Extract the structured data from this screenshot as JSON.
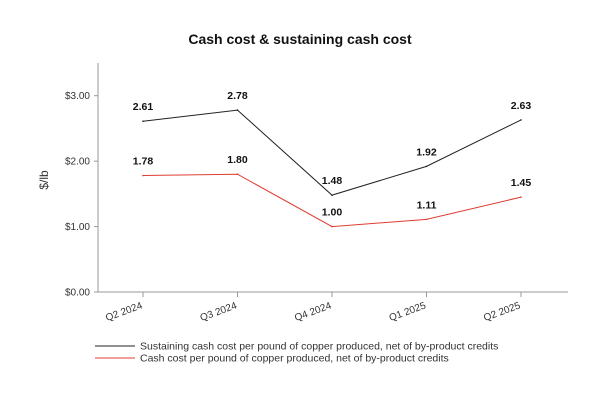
{
  "chart_data": {
    "type": "line",
    "title": "Cash cost & sustaining cash cost",
    "xlabel": "",
    "ylabel": "$/lb",
    "categories": [
      "Q2 2024",
      "Q3 2024",
      "Q4 2024",
      "Q1 2025",
      "Q2 2025"
    ],
    "ylim": [
      0,
      3.5
    ],
    "yticks": [
      0,
      1,
      2,
      3
    ],
    "ytick_labels": [
      "$0.00",
      "$1.00",
      "$2.00",
      "$3.00"
    ],
    "series": [
      {
        "name": "Sustaining cash cost per pound of copper produced, net of by-product credits",
        "values": [
          2.61,
          2.78,
          1.48,
          1.92,
          2.63
        ],
        "labels": [
          "2.61",
          "2.78",
          "1.48",
          "1.92",
          "2.63"
        ],
        "color": "#222222"
      },
      {
        "name": "Cash cost per pound of copper produced, net of by-product credits",
        "values": [
          1.78,
          1.8,
          1.0,
          1.11,
          1.45
        ],
        "labels": [
          "1.78",
          "1.80",
          "1.00",
          "1.11",
          "1.45"
        ],
        "color": "#e03c31"
      }
    ],
    "grid": false,
    "legend_position": "bottom-left"
  }
}
